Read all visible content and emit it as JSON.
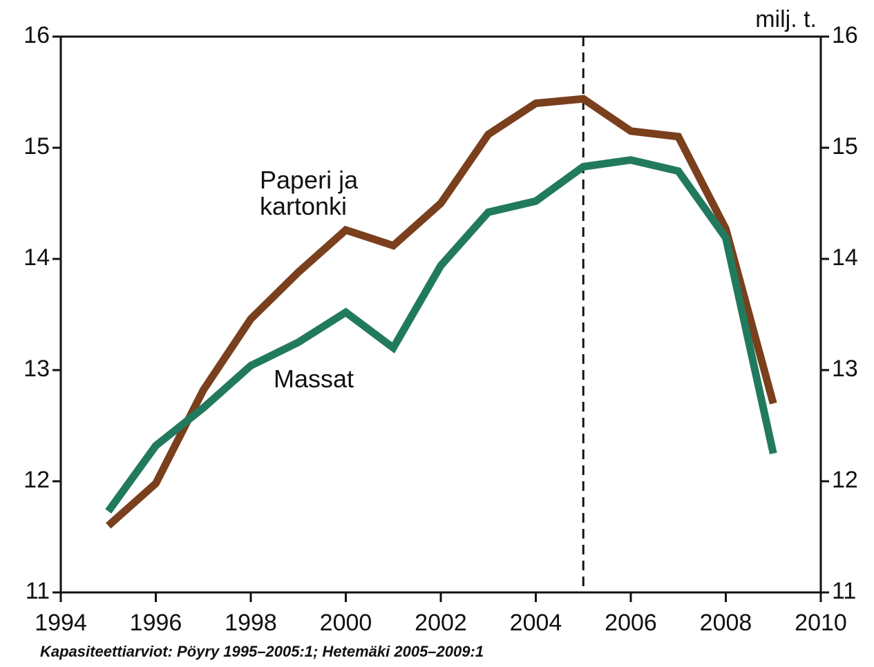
{
  "chart_data": {
    "type": "line",
    "y_label": "milj. t.",
    "source": "Kapasiteettiarviot: Pöyry 1995–2005:1; Hetemäki 2005–2009:1",
    "x": [
      1995,
      1996,
      1997,
      1998,
      1999,
      2000,
      2001,
      2002,
      2003,
      2004,
      2005,
      2006,
      2007,
      2008,
      2009
    ],
    "series": [
      {
        "name": "Paperi ja kartonki",
        "color": "#7a3f1d",
        "values": [
          11.6,
          11.98,
          12.82,
          13.46,
          13.88,
          14.26,
          14.12,
          14.5,
          15.12,
          15.4,
          15.44,
          15.15,
          15.1,
          14.27,
          12.7
        ]
      },
      {
        "name": "Massat",
        "color": "#217a5e",
        "values": [
          11.73,
          12.32,
          12.66,
          13.04,
          13.25,
          13.52,
          13.2,
          13.94,
          14.42,
          14.52,
          14.83,
          14.89,
          14.79,
          14.19,
          12.25
        ]
      }
    ],
    "xlim": [
      1994,
      2010
    ],
    "xticks": [
      1994,
      1996,
      1998,
      2000,
      2002,
      2004,
      2006,
      2008,
      2010
    ],
    "ylim": [
      11,
      16
    ],
    "yticks": [
      11,
      12,
      13,
      14,
      15,
      16
    ],
    "y2lim": [
      11,
      16
    ],
    "y2ticks": [
      11,
      12,
      13,
      14,
      15,
      16
    ],
    "vline": 2005
  }
}
